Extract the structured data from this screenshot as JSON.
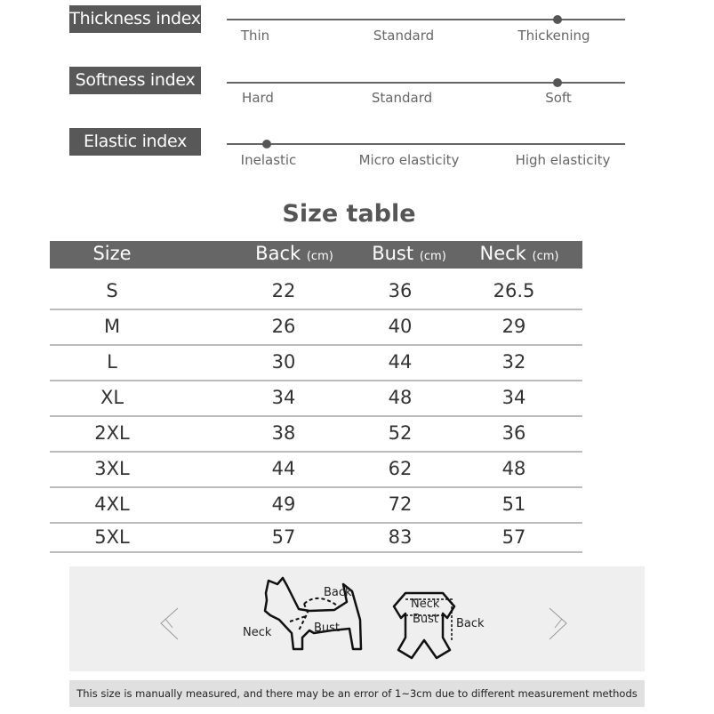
{
  "indices": [
    {
      "label": "Thickness index",
      "options": [
        "Thin",
        "Standard",
        "Thickening"
      ],
      "level": 0.83
    },
    {
      "label": "Softness index",
      "options": [
        "Hard",
        "Standard",
        "Soft"
      ],
      "level": 0.83
    },
    {
      "label": "Elastic index",
      "options": [
        "Inelastic",
        "Micro elasticity",
        "High elasticity"
      ],
      "level": 0.1
    }
  ],
  "size_table": {
    "title": "Size table",
    "headers": [
      {
        "name": "Size",
        "unit": ""
      },
      {
        "name": "Back",
        "unit": "(cm)"
      },
      {
        "name": "Bust",
        "unit": "(cm)"
      },
      {
        "name": "Neck",
        "unit": "(cm)"
      }
    ],
    "rows": [
      [
        "S",
        "22",
        "36",
        "26.5"
      ],
      [
        "M",
        "26",
        "40",
        "29"
      ],
      [
        "L",
        "30",
        "44",
        "32"
      ],
      [
        "XL",
        "34",
        "48",
        "34"
      ],
      [
        "2XL",
        "38",
        "52",
        "36"
      ],
      [
        "3XL",
        "44",
        "62",
        "48"
      ],
      [
        "4XL",
        "49",
        "72",
        "51"
      ],
      [
        "5XL",
        "57",
        "83",
        "57"
      ]
    ]
  },
  "diagram": {
    "dog_labels": {
      "back": "Back",
      "neck": "Neck",
      "bust": "Bust"
    },
    "garment_labels": {
      "neck": "Neck",
      "bust": "Bust",
      "back": "Back"
    }
  },
  "note": "This size is manually measured, and there may be an error of 1~3cm due to different measurement methods"
}
